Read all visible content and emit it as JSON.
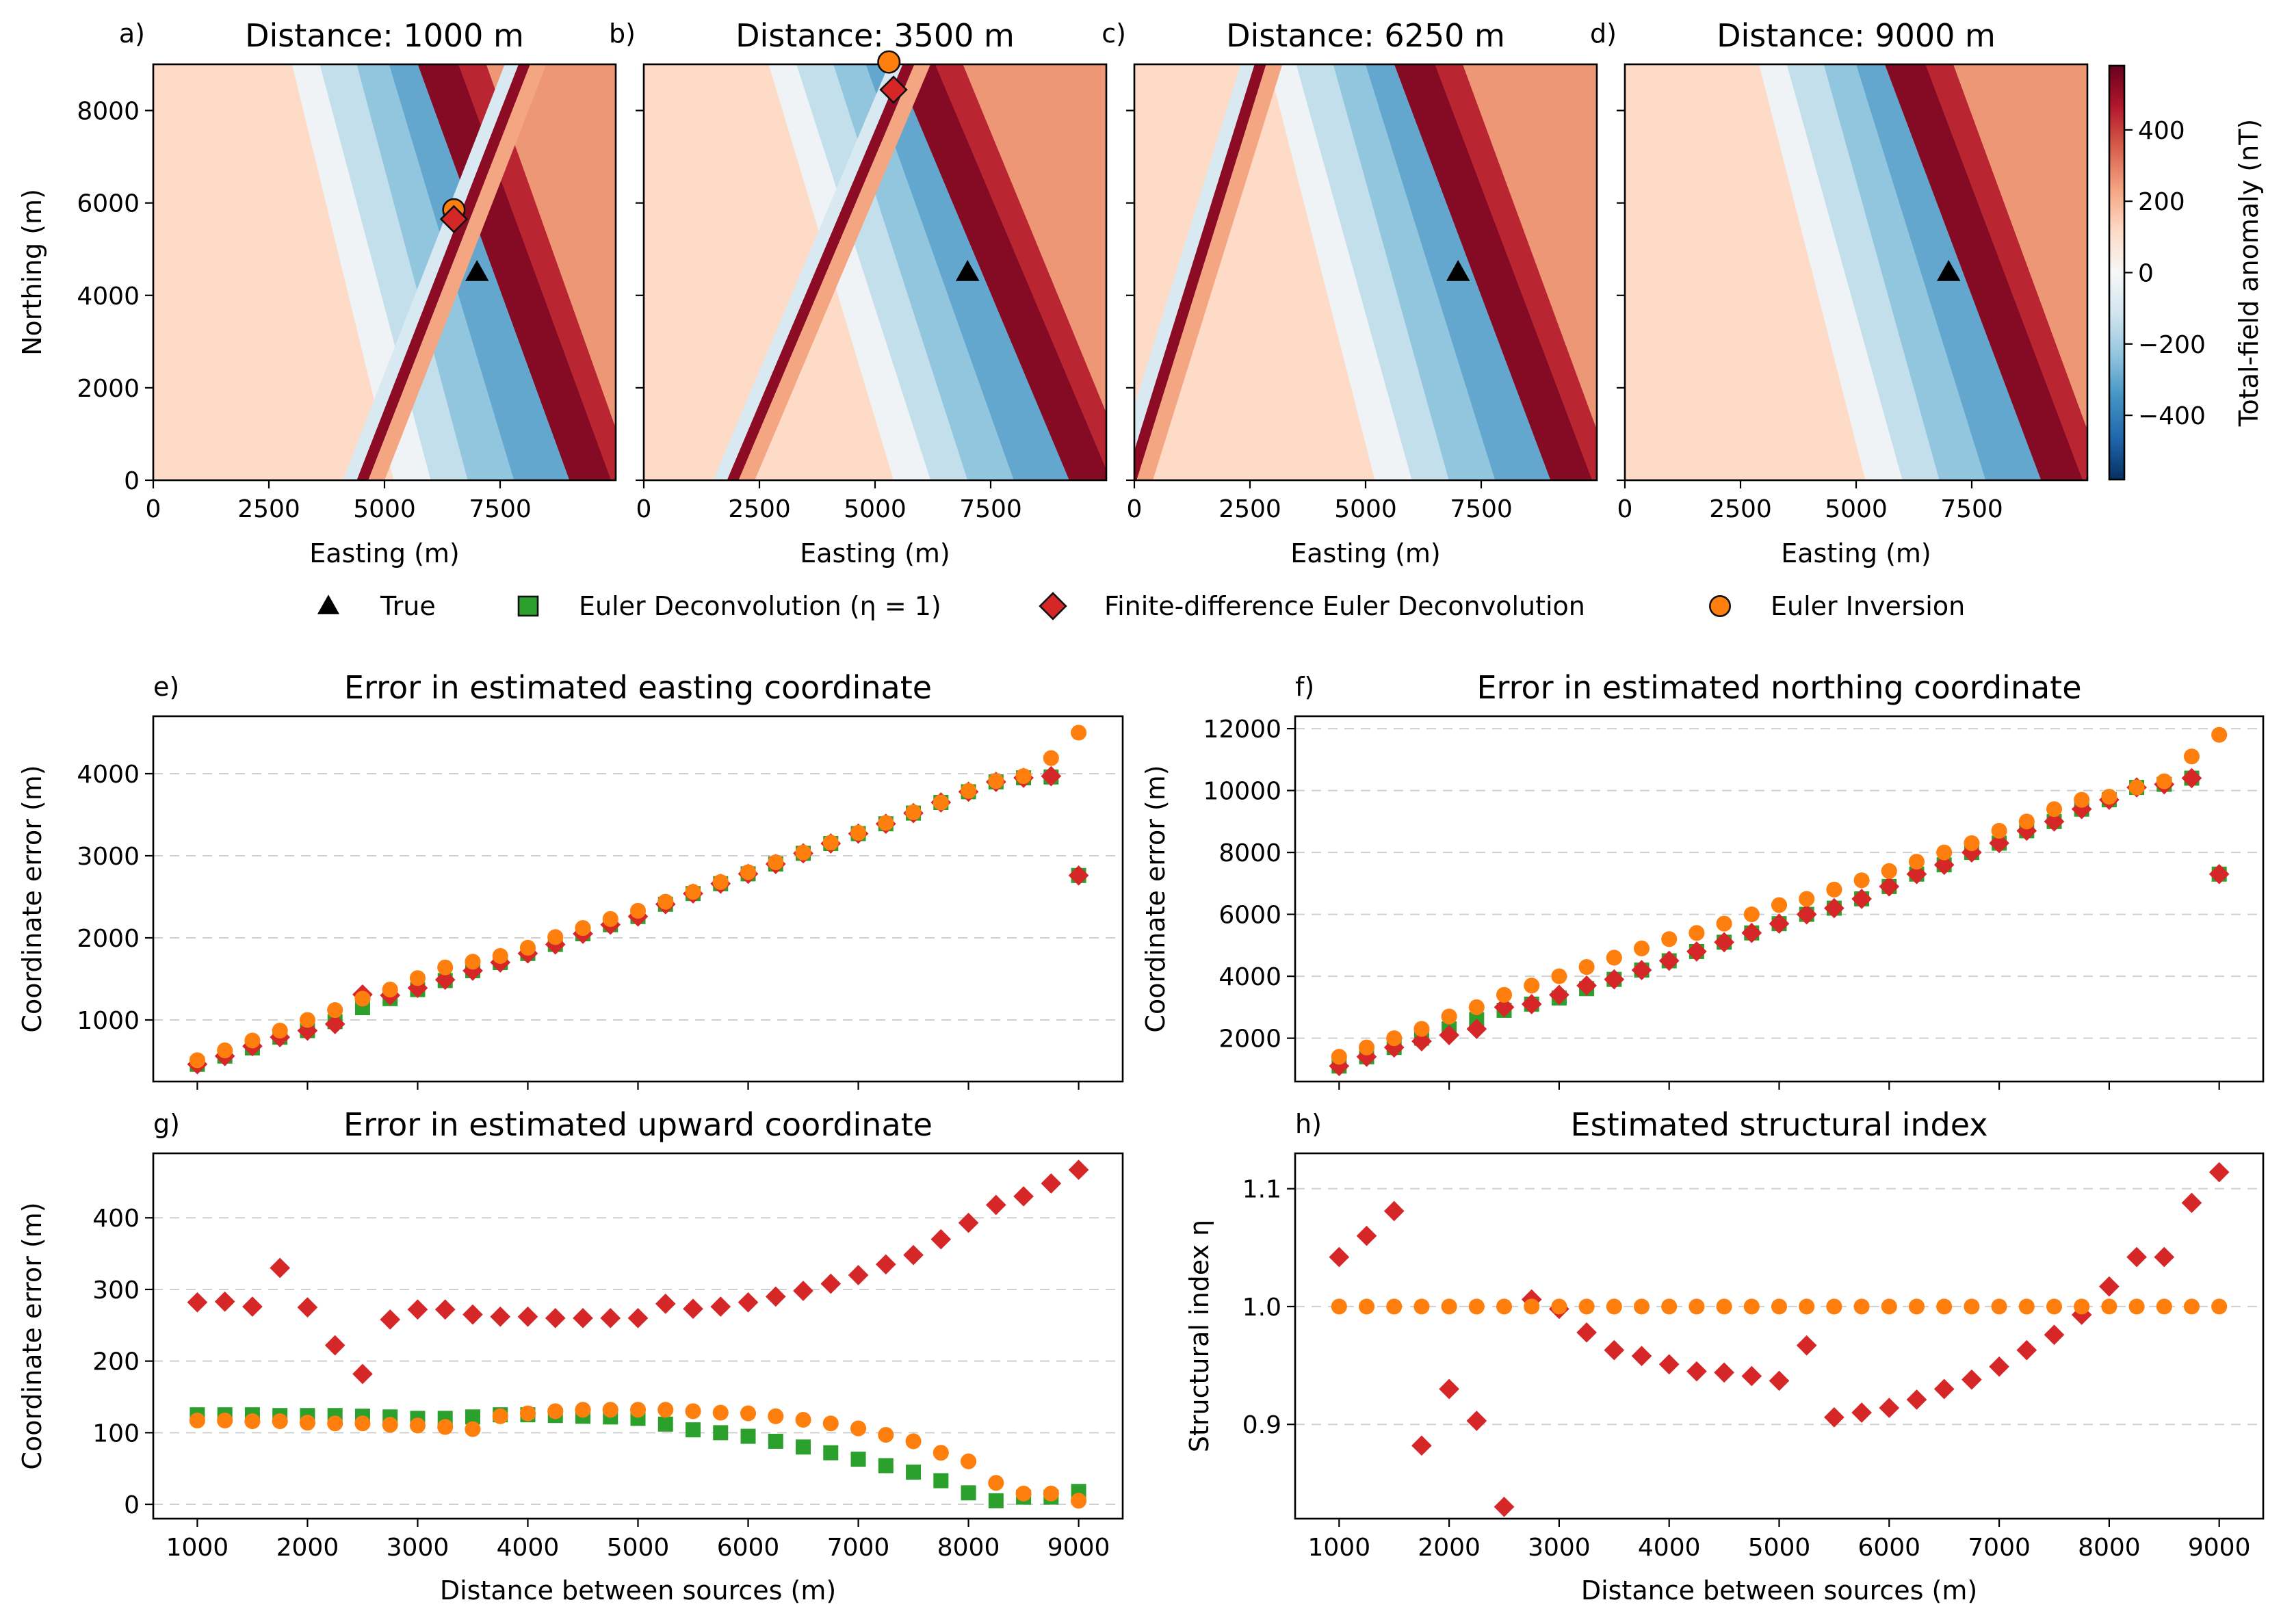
{
  "legend": {
    "items": [
      {
        "label": "True",
        "marker": "triangle",
        "color": "#000000"
      },
      {
        "label": "Euler Deconvolution (η = 1)",
        "marker": "square",
        "color": "#2ca02c"
      },
      {
        "label": "Finite-difference Euler Deconvolution",
        "marker": "diamond",
        "color": "#d62728"
      },
      {
        "label": "Euler Inversion",
        "marker": "circle",
        "color": "#ff7f0e"
      }
    ]
  },
  "colorbar": {
    "label": "Total-field anomaly (nT)",
    "ticks": [
      400,
      200,
      0,
      -200,
      -400
    ],
    "tick_labels": [
      "400",
      "200",
      "0",
      "−200",
      "−400"
    ],
    "range": [
      -580,
      580
    ],
    "colormap": "RdBu_r"
  },
  "chart_data": [
    {
      "panel": "a)",
      "type": "heatmap",
      "title": "Distance: 1000 m",
      "xlabel": "Easting (m)",
      "ylabel": "Northing (m)",
      "xlim": [
        0,
        10000
      ],
      "ylim": [
        0,
        9000
      ],
      "xticks": [
        0,
        2500,
        5000,
        7500
      ],
      "yticks": [
        0,
        2000,
        4000,
        6000,
        8000
      ],
      "xtick_labels": [
        "0",
        "2500",
        "5000",
        "7500"
      ],
      "ytick_labels": [
        "0",
        "2000",
        "4000",
        "6000",
        "8000"
      ],
      "true_source": [
        7000,
        4500
      ],
      "fd_euler": [
        6500,
        5650
      ],
      "euler_inversion": [
        6500,
        5850
      ]
    },
    {
      "panel": "b)",
      "type": "heatmap",
      "title": "Distance: 3500 m",
      "xlabel": "Easting (m)",
      "xlim": [
        0,
        10000
      ],
      "ylim": [
        0,
        9000
      ],
      "xticks": [
        0,
        2500,
        5000,
        7500
      ],
      "xtick_labels": [
        "0",
        "2500",
        "5000",
        "7500"
      ],
      "true_source": [
        7000,
        4500
      ],
      "fd_euler": [
        5400,
        8450
      ],
      "euler_inversion": [
        5300,
        9050
      ]
    },
    {
      "panel": "c)",
      "type": "heatmap",
      "title": "Distance: 6250 m",
      "xlabel": "Easting (m)",
      "xlim": [
        0,
        10000
      ],
      "ylim": [
        0,
        9000
      ],
      "xticks": [
        0,
        2500,
        5000,
        7500
      ],
      "xtick_labels": [
        "0",
        "2500",
        "5000",
        "7500"
      ],
      "true_source": [
        7000,
        4500
      ]
    },
    {
      "panel": "d)",
      "type": "heatmap",
      "title": "Distance: 9000 m",
      "xlabel": "Easting (m)",
      "xlim": [
        0,
        10000
      ],
      "ylim": [
        0,
        9000
      ],
      "xticks": [
        0,
        2500,
        5000,
        7500
      ],
      "xtick_labels": [
        "0",
        "2500",
        "5000",
        "7500"
      ],
      "true_source": [
        7000,
        4500
      ]
    },
    {
      "panel": "e)",
      "type": "scatter",
      "title": "Error in estimated easting coordinate",
      "xlabel": "",
      "ylabel": "Coordinate error (m)",
      "xlim": [
        600,
        9400
      ],
      "ylim": [
        250,
        4700
      ],
      "yticks": [
        1000,
        2000,
        3000,
        4000
      ],
      "ytick_labels": [
        "1000",
        "2000",
        "3000",
        "4000"
      ],
      "xticks": [
        1000,
        2000,
        3000,
        4000,
        5000,
        6000,
        7000,
        8000,
        9000
      ],
      "xtick_labels": [],
      "x": [
        1000,
        1250,
        1500,
        1750,
        2000,
        2250,
        2500,
        2750,
        3000,
        3250,
        3500,
        3750,
        4000,
        4250,
        4500,
        4750,
        5000,
        5250,
        5500,
        5750,
        6000,
        6250,
        6500,
        6750,
        7000,
        7250,
        7500,
        7750,
        8000,
        8250,
        8500,
        8750,
        9000
      ],
      "series": [
        {
          "name": "Euler Deconvolution (η = 1)",
          "marker": "square",
          "color": "#2ca02c",
          "values": [
            460,
            560,
            660,
            790,
            870,
            980,
            1150,
            1260,
            1370,
            1480,
            1600,
            1700,
            1810,
            1920,
            2050,
            2160,
            2260,
            2410,
            2540,
            2660,
            2780,
            2900,
            3030,
            3150,
            3270,
            3390,
            3520,
            3650,
            3780,
            3900,
            3950,
            3960,
            2760
          ]
        },
        {
          "name": "Finite-difference Euler Deconvolution",
          "marker": "diamond",
          "color": "#d62728",
          "values": [
            460,
            560,
            680,
            790,
            870,
            950,
            1310,
            1300,
            1390,
            1490,
            1600,
            1700,
            1810,
            1920,
            2050,
            2160,
            2260,
            2410,
            2540,
            2660,
            2780,
            2900,
            3030,
            3150,
            3270,
            3390,
            3520,
            3650,
            3780,
            3900,
            3950,
            3970,
            2760
          ]
        },
        {
          "name": "Euler Inversion",
          "marker": "circle",
          "color": "#ff7f0e",
          "values": [
            510,
            630,
            750,
            870,
            1000,
            1120,
            1260,
            1370,
            1510,
            1640,
            1710,
            1780,
            1880,
            2010,
            2120,
            2230,
            2330,
            2440,
            2560,
            2680,
            2800,
            2920,
            3040,
            3160,
            3280,
            3400,
            3530,
            3650,
            3790,
            3910,
            3970,
            4190,
            4500
          ]
        }
      ]
    },
    {
      "panel": "f)",
      "type": "scatter",
      "title": "Error in estimated northing coordinate",
      "xlabel": "",
      "ylabel": "Coordinate error (m)",
      "xlim": [
        600,
        9400
      ],
      "ylim": [
        600,
        12400
      ],
      "yticks": [
        2000,
        4000,
        6000,
        8000,
        10000,
        12000
      ],
      "ytick_labels": [
        "2000",
        "4000",
        "6000",
        "8000",
        "10000",
        "12000"
      ],
      "xticks": [
        1000,
        2000,
        3000,
        4000,
        5000,
        6000,
        7000,
        8000,
        9000
      ],
      "xtick_labels": [],
      "x": [
        1000,
        1250,
        1500,
        1750,
        2000,
        2250,
        2500,
        2750,
        3000,
        3250,
        3500,
        3750,
        4000,
        4250,
        4500,
        4750,
        5000,
        5250,
        5500,
        5750,
        6000,
        6250,
        6500,
        6750,
        7000,
        7250,
        7500,
        7750,
        8000,
        8250,
        8500,
        8750,
        9000
      ],
      "series": [
        {
          "name": "Euler Deconvolution (η = 1)",
          "marker": "square",
          "color": "#2ca02c",
          "values": [
            1100,
            1400,
            1700,
            2000,
            2300,
            2600,
            2900,
            3100,
            3300,
            3600,
            3900,
            4200,
            4500,
            4800,
            5100,
            5400,
            5700,
            6000,
            6200,
            6500,
            6900,
            7300,
            7600,
            8000,
            8300,
            8700,
            9000,
            9400,
            9700,
            10100,
            10200,
            10400,
            7300
          ]
        },
        {
          "name": "Finite-difference Euler Deconvolution",
          "marker": "diamond",
          "color": "#d62728",
          "values": [
            1100,
            1400,
            1700,
            1900,
            2100,
            2300,
            3000,
            3100,
            3400,
            3700,
            3900,
            4200,
            4500,
            4800,
            5100,
            5400,
            5700,
            6000,
            6200,
            6500,
            6900,
            7300,
            7600,
            8000,
            8300,
            8700,
            9000,
            9400,
            9700,
            10100,
            10200,
            10400,
            7300
          ]
        },
        {
          "name": "Euler Inversion",
          "marker": "circle",
          "color": "#ff7f0e",
          "values": [
            1400,
            1700,
            2000,
            2300,
            2700,
            3000,
            3400,
            3700,
            4000,
            4300,
            4600,
            4900,
            5200,
            5400,
            5700,
            6000,
            6300,
            6500,
            6800,
            7100,
            7400,
            7700,
            8000,
            8300,
            8700,
            9000,
            9400,
            9700,
            9800,
            10100,
            10300,
            11100,
            11800
          ]
        }
      ]
    },
    {
      "panel": "g)",
      "type": "scatter",
      "title": "Error in estimated upward coordinate",
      "xlabel": "Distance between sources (m)",
      "ylabel": "Coordinate error (m)",
      "xlim": [
        600,
        9400
      ],
      "ylim": [
        -20,
        490
      ],
      "yticks": [
        0,
        100,
        200,
        300,
        400
      ],
      "ytick_labels": [
        "0",
        "100",
        "200",
        "300",
        "400"
      ],
      "xticks": [
        1000,
        2000,
        3000,
        4000,
        5000,
        6000,
        7000,
        8000,
        9000
      ],
      "xtick_labels": [
        "1000",
        "2000",
        "3000",
        "4000",
        "5000",
        "6000",
        "7000",
        "8000",
        "9000"
      ],
      "x": [
        1000,
        1250,
        1500,
        1750,
        2000,
        2250,
        2500,
        2750,
        3000,
        3250,
        3500,
        3750,
        4000,
        4250,
        4500,
        4750,
        5000,
        5250,
        5500,
        5750,
        6000,
        6250,
        6500,
        6750,
        7000,
        7250,
        7500,
        7750,
        8000,
        8250,
        8500,
        8750,
        9000
      ],
      "series": [
        {
          "name": "Euler Deconvolution (η = 1)",
          "marker": "square",
          "color": "#2ca02c",
          "values": [
            125,
            125,
            125,
            124,
            124,
            124,
            123,
            122,
            120,
            120,
            122,
            125,
            125,
            124,
            123,
            122,
            120,
            112,
            104,
            100,
            95,
            88,
            80,
            72,
            63,
            54,
            45,
            33,
            16,
            5,
            10,
            10,
            18
          ]
        },
        {
          "name": "Finite-difference Euler Deconvolution",
          "marker": "diamond",
          "color": "#d62728",
          "values": [
            282,
            283,
            276,
            330,
            275,
            222,
            182,
            258,
            272,
            272,
            265,
            262,
            262,
            260,
            260,
            260,
            260,
            280,
            273,
            276,
            282,
            290,
            298,
            308,
            320,
            335,
            348,
            370,
            393,
            418,
            430,
            448,
            467
          ]
        },
        {
          "name": "Euler Inversion",
          "marker": "circle",
          "color": "#ff7f0e",
          "values": [
            117,
            117,
            116,
            116,
            114,
            113,
            113,
            111,
            110,
            108,
            105,
            123,
            127,
            130,
            132,
            132,
            132,
            132,
            130,
            128,
            127,
            123,
            118,
            113,
            106,
            97,
            88,
            72,
            60,
            30,
            15,
            15,
            5
          ]
        }
      ]
    },
    {
      "panel": "h)",
      "type": "scatter",
      "title": "Estimated structural index",
      "xlabel": "Distance between sources (m)",
      "ylabel": "Structural index η",
      "xlim": [
        600,
        9400
      ],
      "ylim": [
        0.82,
        1.13
      ],
      "yticks": [
        0.9,
        1.0,
        1.1
      ],
      "ytick_labels": [
        "0.9",
        "1.0",
        "1.1"
      ],
      "xticks": [
        1000,
        2000,
        3000,
        4000,
        5000,
        6000,
        7000,
        8000,
        9000
      ],
      "xtick_labels": [
        "1000",
        "2000",
        "3000",
        "4000",
        "5000",
        "6000",
        "7000",
        "8000",
        "9000"
      ],
      "x": [
        1000,
        1250,
        1500,
        1750,
        2000,
        2250,
        2500,
        2750,
        3000,
        3250,
        3500,
        3750,
        4000,
        4250,
        4500,
        4750,
        5000,
        5250,
        5500,
        5750,
        6000,
        6250,
        6500,
        6750,
        7000,
        7250,
        7500,
        7750,
        8000,
        8250,
        8500,
        8750,
        9000
      ],
      "series": [
        {
          "name": "Finite-difference Euler Deconvolution",
          "marker": "diamond",
          "color": "#d62728",
          "values": [
            1.042,
            1.06,
            1.081,
            0.882,
            0.93,
            0.903,
            0.83,
            1.006,
            0.998,
            0.978,
            0.963,
            0.958,
            0.951,
            0.945,
            0.944,
            0.941,
            0.937,
            0.967,
            0.906,
            0.91,
            0.914,
            0.921,
            0.93,
            0.938,
            0.949,
            0.963,
            0.976,
            0.993,
            1.017,
            1.042,
            1.042,
            1.088,
            1.114
          ]
        },
        {
          "name": "Euler Inversion",
          "marker": "circle",
          "color": "#ff7f0e",
          "values": [
            1,
            1,
            1,
            1,
            1,
            1,
            1,
            1,
            1,
            1,
            1,
            1,
            1,
            1,
            1,
            1,
            1,
            1,
            1,
            1,
            1,
            1,
            1,
            1,
            1,
            1,
            1,
            1,
            1,
            1,
            1,
            1,
            1
          ]
        }
      ]
    }
  ]
}
